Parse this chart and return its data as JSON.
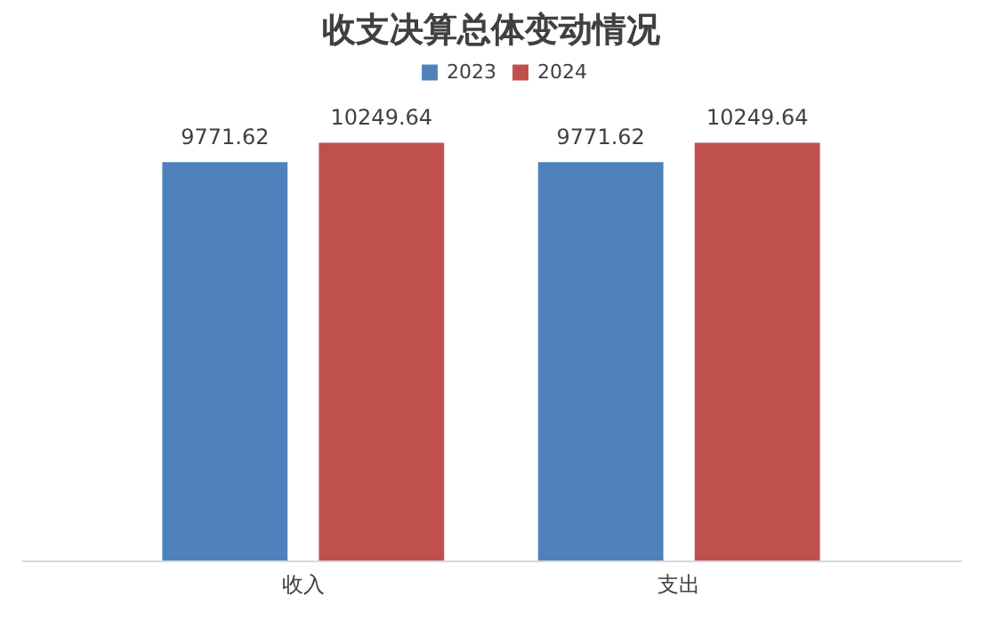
{
  "chart_data": {
    "type": "bar",
    "title": "收支决算总体变动情况",
    "categories": [
      "收入",
      "支出"
    ],
    "series": [
      {
        "name": "2023",
        "color": "#4f81bd",
        "values": [
          9771.62,
          9771.62
        ]
      },
      {
        "name": "2024",
        "color": "#c0504d",
        "values": [
          10249.64,
          10249.64
        ]
      }
    ],
    "tick_labels": "x",
    "data_labels": true,
    "legend": "top"
  }
}
